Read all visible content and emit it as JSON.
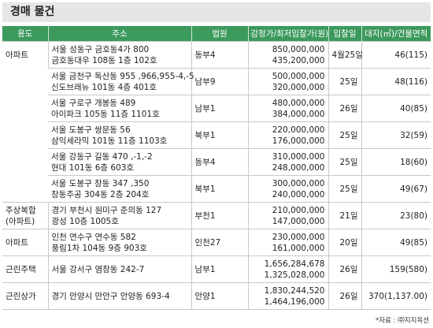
{
  "title": "경매 물건",
  "table": {
    "headers": [
      "용도",
      "주소",
      "법원",
      "감정가/최저입찰가(원)",
      "입찰일",
      "대지(㎡)/건물면적"
    ],
    "rows": [
      {
        "use": "아파트",
        "address": [
          "서울 성동구 금호동4가 800",
          "금호동대우 108동 1층 102호"
        ],
        "court": "동부4",
        "price": [
          "850,000,000",
          "435,200,000"
        ],
        "date": "4월25일",
        "area": "46(115)"
      },
      {
        "address": [
          "서울 금천구 독산동 955 ,966,955-4,-5",
          "신도브래뉴 101동 4층 401호"
        ],
        "court": "남부9",
        "price": [
          "500,000,000",
          "320,000,000"
        ],
        "date": "25일",
        "area": "48(116)"
      },
      {
        "address": [
          "서울 구로구 개봉동 489",
          "아이파크 105동 11층 1101호"
        ],
        "court": "남부1",
        "price": [
          "480,000,000",
          "384,000,000"
        ],
        "date": "26일",
        "area": "40(85)"
      },
      {
        "address": [
          "서울 도봉구 쌍문동 56",
          "삼익세라믹 101동 11층 1103호"
        ],
        "court": "북부1",
        "price": [
          "220,000,000",
          "176,000,000"
        ],
        "date": "25일",
        "area": "32(59)"
      },
      {
        "address": [
          "서울 강동구 길동 470 ,-1,-2",
          "현대 101동 6층 603호"
        ],
        "court": "동부4",
        "price": [
          "310,000,000",
          "248,000,000"
        ],
        "date": "25일",
        "area": "18(60)"
      },
      {
        "address": [
          "서울 도봉구 창동 347 ,350",
          "창동주공 304동 2층 204호"
        ],
        "court": "북부1",
        "price": [
          "300,000,000",
          "240,000,000"
        ],
        "date": "25일",
        "area": "49(67)"
      },
      {
        "use": [
          "주상복합",
          "(아파트)"
        ],
        "address": [
          "경기 부천시 원미구 춘의동 127",
          "광성 10층 1005호"
        ],
        "court": "부천1",
        "price": [
          "210,000,000",
          "147,000,000"
        ],
        "date": "21일",
        "area": "23(80)"
      },
      {
        "use": "아파트",
        "address": [
          "인천 연수구 연수동 582",
          "풍림1차 104동 9층 903호"
        ],
        "court": "인천27",
        "price": [
          "230,000,000",
          "161,000,000"
        ],
        "date": "20일",
        "area": "49(85)"
      },
      {
        "use": "근린주택",
        "address": [
          "서울 강서구 염창동 242-7"
        ],
        "court": "남부1",
        "price": [
          "1,656,284,678",
          "1,325,028,000"
        ],
        "date": "26일",
        "area": "159(580)"
      },
      {
        "use": "근린상가",
        "address": [
          "경기 안양시 만안구 안양동 693-4"
        ],
        "court": "안양1",
        "price": [
          "1,830,244,520",
          "1,464,196,000"
        ],
        "date": "26일",
        "area": "370(1,137.00)"
      }
    ]
  },
  "source": "*자료 : ㈜지지옥션"
}
